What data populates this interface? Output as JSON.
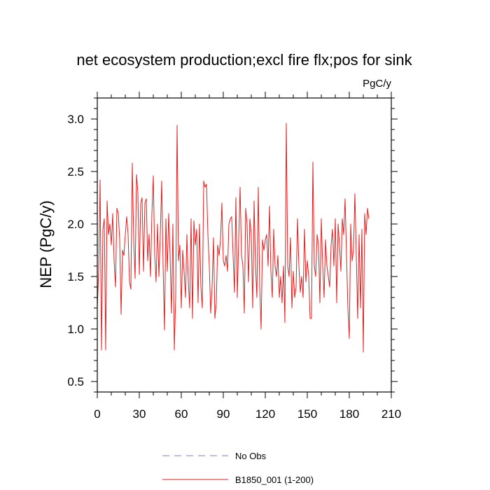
{
  "chart_data": {
    "type": "line",
    "title": "net ecosystem production;excl fire flx;pos for sink",
    "units": "PgC/y",
    "xlabel": "",
    "ylabel": "NEP  (PgC/y)",
    "xlim": [
      0,
      210
    ],
    "ylim": [
      0.4,
      3.2
    ],
    "xticks": [
      0,
      30,
      60,
      90,
      120,
      150,
      180,
      210
    ],
    "yticks": [
      0.5,
      1.0,
      1.5,
      2.0,
      2.5,
      3.0
    ],
    "ytick_labels": [
      "0.5",
      "1.0",
      "1.5",
      "2.0",
      "2.5",
      "3.0"
    ],
    "legend": [
      {
        "label": "No Obs",
        "color": "#7b7bd6",
        "style": "dashed"
      },
      {
        "label": "B1850_001 (1-200)",
        "color": "#e02020",
        "style": "solid"
      }
    ],
    "series": [
      {
        "name": "B1850_001 (1-200)",
        "color": "#e02020",
        "values": [
          1.2,
          1.55,
          2.42,
          0.8,
          1.95,
          2.05,
          0.8,
          2.22,
          1.9,
          2.0,
          1.8,
          2.1,
          1.65,
          1.4,
          2.15,
          2.1,
          1.85,
          1.14,
          1.75,
          1.7,
          1.9,
          2.07,
          1.9,
          1.45,
          1.38,
          2.58,
          1.85,
          1.48,
          2.47,
          2.3,
          1.52,
          2.2,
          2.25,
          1.55,
          2.2,
          2.24,
          1.65,
          1.9,
          1.5,
          2.1,
          2.46,
          1.7,
          1.45,
          2.0,
          1.5,
          1.9,
          2.41,
          1.6,
          0.99,
          2.05,
          1.55,
          2.1,
          1.7,
          1.15,
          2.0,
          0.8,
          1.3,
          2.94,
          1.65,
          1.8,
          1.2,
          1.75,
          1.55,
          1.3,
          1.9,
          1.45,
          1.2,
          2.05,
          1.1,
          2.03,
          1.8,
          1.95,
          1.25,
          2.0,
          1.4,
          1.2,
          2.41,
          2.35,
          2.38,
          1.9,
          1.6,
          1.15,
          1.4,
          1.87,
          1.1,
          1.25,
          1.8,
          1.7,
          1.85,
          2.2,
          1.65,
          1.6,
          1.7,
          1.55,
          2.0,
          2.05,
          2.07,
          1.7,
          1.35,
          2.25,
          1.3,
          1.85,
          2.35,
          1.7,
          1.6,
          1.15,
          2.15,
          2.0,
          1.45,
          2.05,
          1.9,
          1.2,
          2.22,
          1.6,
          1.3,
          2.35,
          1.4,
          1.0,
          1.85,
          1.75,
          1.85,
          1.9,
          1.6,
          2.17,
          1.55,
          1.3,
          1.95,
          1.6,
          1.5,
          1.7,
          1.3,
          1.5,
          1.25,
          1.6,
          1.06,
          2.96,
          1.6,
          1.5,
          1.87,
          1.2,
          1.55,
          1.3,
          1.4,
          2.05,
          1.6,
          1.35,
          1.5,
          1.3,
          1.95,
          1.45,
          1.65,
          1.5,
          1.1,
          1.1,
          2.59,
          1.6,
          1.5,
          1.9,
          1.8,
          1.25,
          2.05,
          1.6,
          1.3,
          1.85,
          1.6,
          1.5,
          1.4,
          1.8,
          1.95,
          1.6,
          2.05,
          1.25,
          2.0,
          1.8,
          1.55,
          2.05,
          1.9,
          2.24,
          1.7,
          1.2,
          0.91,
          2.0,
          1.65,
          1.75,
          2.29,
          1.7,
          1.1,
          1.9,
          1.2,
          1.95,
          0.78,
          2.1,
          1.9,
          2.15,
          2.05
        ]
      }
    ]
  }
}
